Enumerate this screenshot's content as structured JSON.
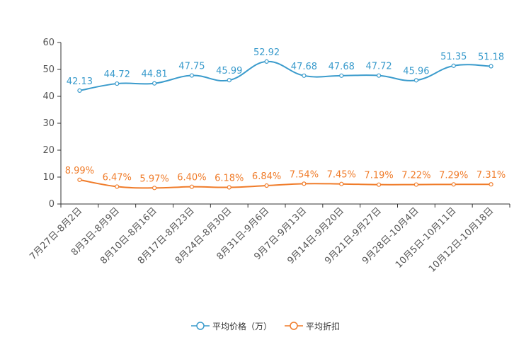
{
  "colors": {
    "price": "#3a9bcc",
    "discount": "#f07c2a",
    "axis": "#333333",
    "text": "#555555"
  },
  "legend": {
    "price_label": "平均价格（万）",
    "discount_label": "平均折扣"
  },
  "chart_data": {
    "type": "line",
    "title": "",
    "xlabel": "",
    "ylabel": "",
    "ylim": [
      0,
      60
    ],
    "yticks": [
      0,
      10,
      20,
      30,
      40,
      50,
      60
    ],
    "grid": false,
    "legend_position": "bottom-center",
    "categories": [
      "7月27日-8月2日",
      "8月3日-8月9日",
      "8月10日-8月16日",
      "8月17日-8月23日",
      "8月24日-8月30日",
      "8月31日-9月6日",
      "9月7日-9月13日",
      "9月14日-9月20日",
      "9月21日-9月27日",
      "9月28日-10月4日",
      "10月5日-10月11日",
      "10月12日-10月18日"
    ],
    "series": [
      {
        "name": "平均价格（万）",
        "values": [
          42.13,
          44.72,
          44.81,
          47.75,
          45.99,
          52.92,
          47.68,
          47.68,
          47.72,
          45.96,
          51.35,
          51.18
        ],
        "labels": [
          "42.13",
          "44.72",
          "44.81",
          "47.75",
          "45.99",
          "52.92",
          "47.68",
          "47.68",
          "47.72",
          "45.96",
          "51.35",
          "51.18"
        ]
      },
      {
        "name": "平均折扣",
        "values": [
          8.99,
          6.47,
          5.97,
          6.4,
          6.18,
          6.84,
          7.54,
          7.45,
          7.19,
          7.22,
          7.29,
          7.31
        ],
        "labels": [
          "8.99%",
          "6.47%",
          "5.97%",
          "6.40%",
          "6.18%",
          "6.84%",
          "7.54%",
          "7.45%",
          "7.19%",
          "7.22%",
          "7.29%",
          "7.31%"
        ]
      }
    ]
  }
}
